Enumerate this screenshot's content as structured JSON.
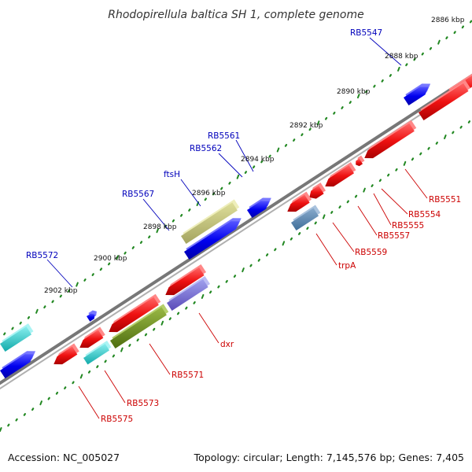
{
  "title": "Rhodopirellula baltica SH 1, complete genome",
  "footer": {
    "accession": "Accession: NC_005027",
    "topology": "Topology: circular; Length: 7,145,576 bp; Genes: 7,405"
  },
  "scale_labels": [
    "2886 kbp",
    "2888 kbp",
    "2890 kbp",
    "2892 kbp",
    "2894 kbp",
    "2896 kbp",
    "2898 kbp",
    "2900 kbp",
    "2902 kbp"
  ],
  "genes_forward": [
    "RB5547",
    "RB5561",
    "RB5562",
    "ftsH",
    "RB5567",
    "RB5572"
  ],
  "genes_reverse": [
    "RB5551",
    "RB5554",
    "RB5555",
    "RB5557",
    "RB5559",
    "trpA",
    "dxr",
    "RB5571",
    "RB5573",
    "RB5575"
  ],
  "colors": {
    "forward_label": "#0000bb",
    "reverse_label": "#cc0000",
    "backbone": "#888888",
    "ticks": "#228822"
  }
}
